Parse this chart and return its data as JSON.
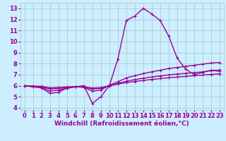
{
  "background_color": "#cceeff",
  "grid_color": "#aacccc",
  "line_color": "#990099",
  "marker": "+",
  "markersize": 3,
  "linewidth": 1.0,
  "xlabel": "Windchill (Refroidissement éolien,°C)",
  "xlabel_fontsize": 6.5,
  "tick_fontsize": 6.0,
  "xlim": [
    -0.5,
    23.5
  ],
  "ylim": [
    3.8,
    13.5
  ],
  "yticks": [
    4,
    5,
    6,
    7,
    8,
    9,
    10,
    11,
    12,
    13
  ],
  "xticks": [
    0,
    1,
    2,
    3,
    4,
    5,
    6,
    7,
    8,
    9,
    10,
    11,
    12,
    13,
    14,
    15,
    16,
    17,
    18,
    19,
    20,
    21,
    22,
    23
  ],
  "lines": [
    {
      "x": [
        0,
        1,
        2,
        3,
        4,
        5,
        6,
        7,
        8,
        9,
        10,
        11,
        12,
        13,
        14,
        15,
        16,
        17,
        18,
        19,
        20,
        21,
        22,
        23
      ],
      "y": [
        6.0,
        5.9,
        5.8,
        5.3,
        5.4,
        5.8,
        5.9,
        6.0,
        4.4,
        5.0,
        6.0,
        8.4,
        11.9,
        12.3,
        13.0,
        12.5,
        11.9,
        10.5,
        8.5,
        7.5,
        7.0,
        7.2,
        7.4,
        7.3
      ]
    },
    {
      "x": [
        0,
        1,
        2,
        3,
        4,
        5,
        6,
        7,
        8,
        9,
        10,
        11,
        12,
        13,
        14,
        15,
        16,
        17,
        18,
        19,
        20,
        21,
        22,
        23
      ],
      "y": [
        6.0,
        5.9,
        5.85,
        5.5,
        5.6,
        5.75,
        5.9,
        5.85,
        5.5,
        5.6,
        6.05,
        6.35,
        6.7,
        6.9,
        7.1,
        7.25,
        7.4,
        7.55,
        7.65,
        7.75,
        7.85,
        7.95,
        8.05,
        8.1
      ]
    },
    {
      "x": [
        0,
        1,
        2,
        3,
        4,
        5,
        6,
        7,
        8,
        9,
        10,
        11,
        12,
        13,
        14,
        15,
        16,
        17,
        18,
        19,
        20,
        21,
        22,
        23
      ],
      "y": [
        6.0,
        5.95,
        5.9,
        5.7,
        5.75,
        5.82,
        5.9,
        5.88,
        5.7,
        5.75,
        6.0,
        6.2,
        6.4,
        6.55,
        6.68,
        6.78,
        6.88,
        6.98,
        7.05,
        7.12,
        7.18,
        7.25,
        7.35,
        7.42
      ]
    },
    {
      "x": [
        0,
        1,
        2,
        3,
        4,
        5,
        6,
        7,
        8,
        9,
        10,
        11,
        12,
        13,
        14,
        15,
        16,
        17,
        18,
        19,
        20,
        21,
        22,
        23
      ],
      "y": [
        6.0,
        5.97,
        5.94,
        5.8,
        5.83,
        5.88,
        5.92,
        5.9,
        5.78,
        5.82,
        6.0,
        6.14,
        6.28,
        6.38,
        6.48,
        6.56,
        6.64,
        6.72,
        6.78,
        6.84,
        6.9,
        6.96,
        7.02,
        7.08
      ]
    }
  ]
}
